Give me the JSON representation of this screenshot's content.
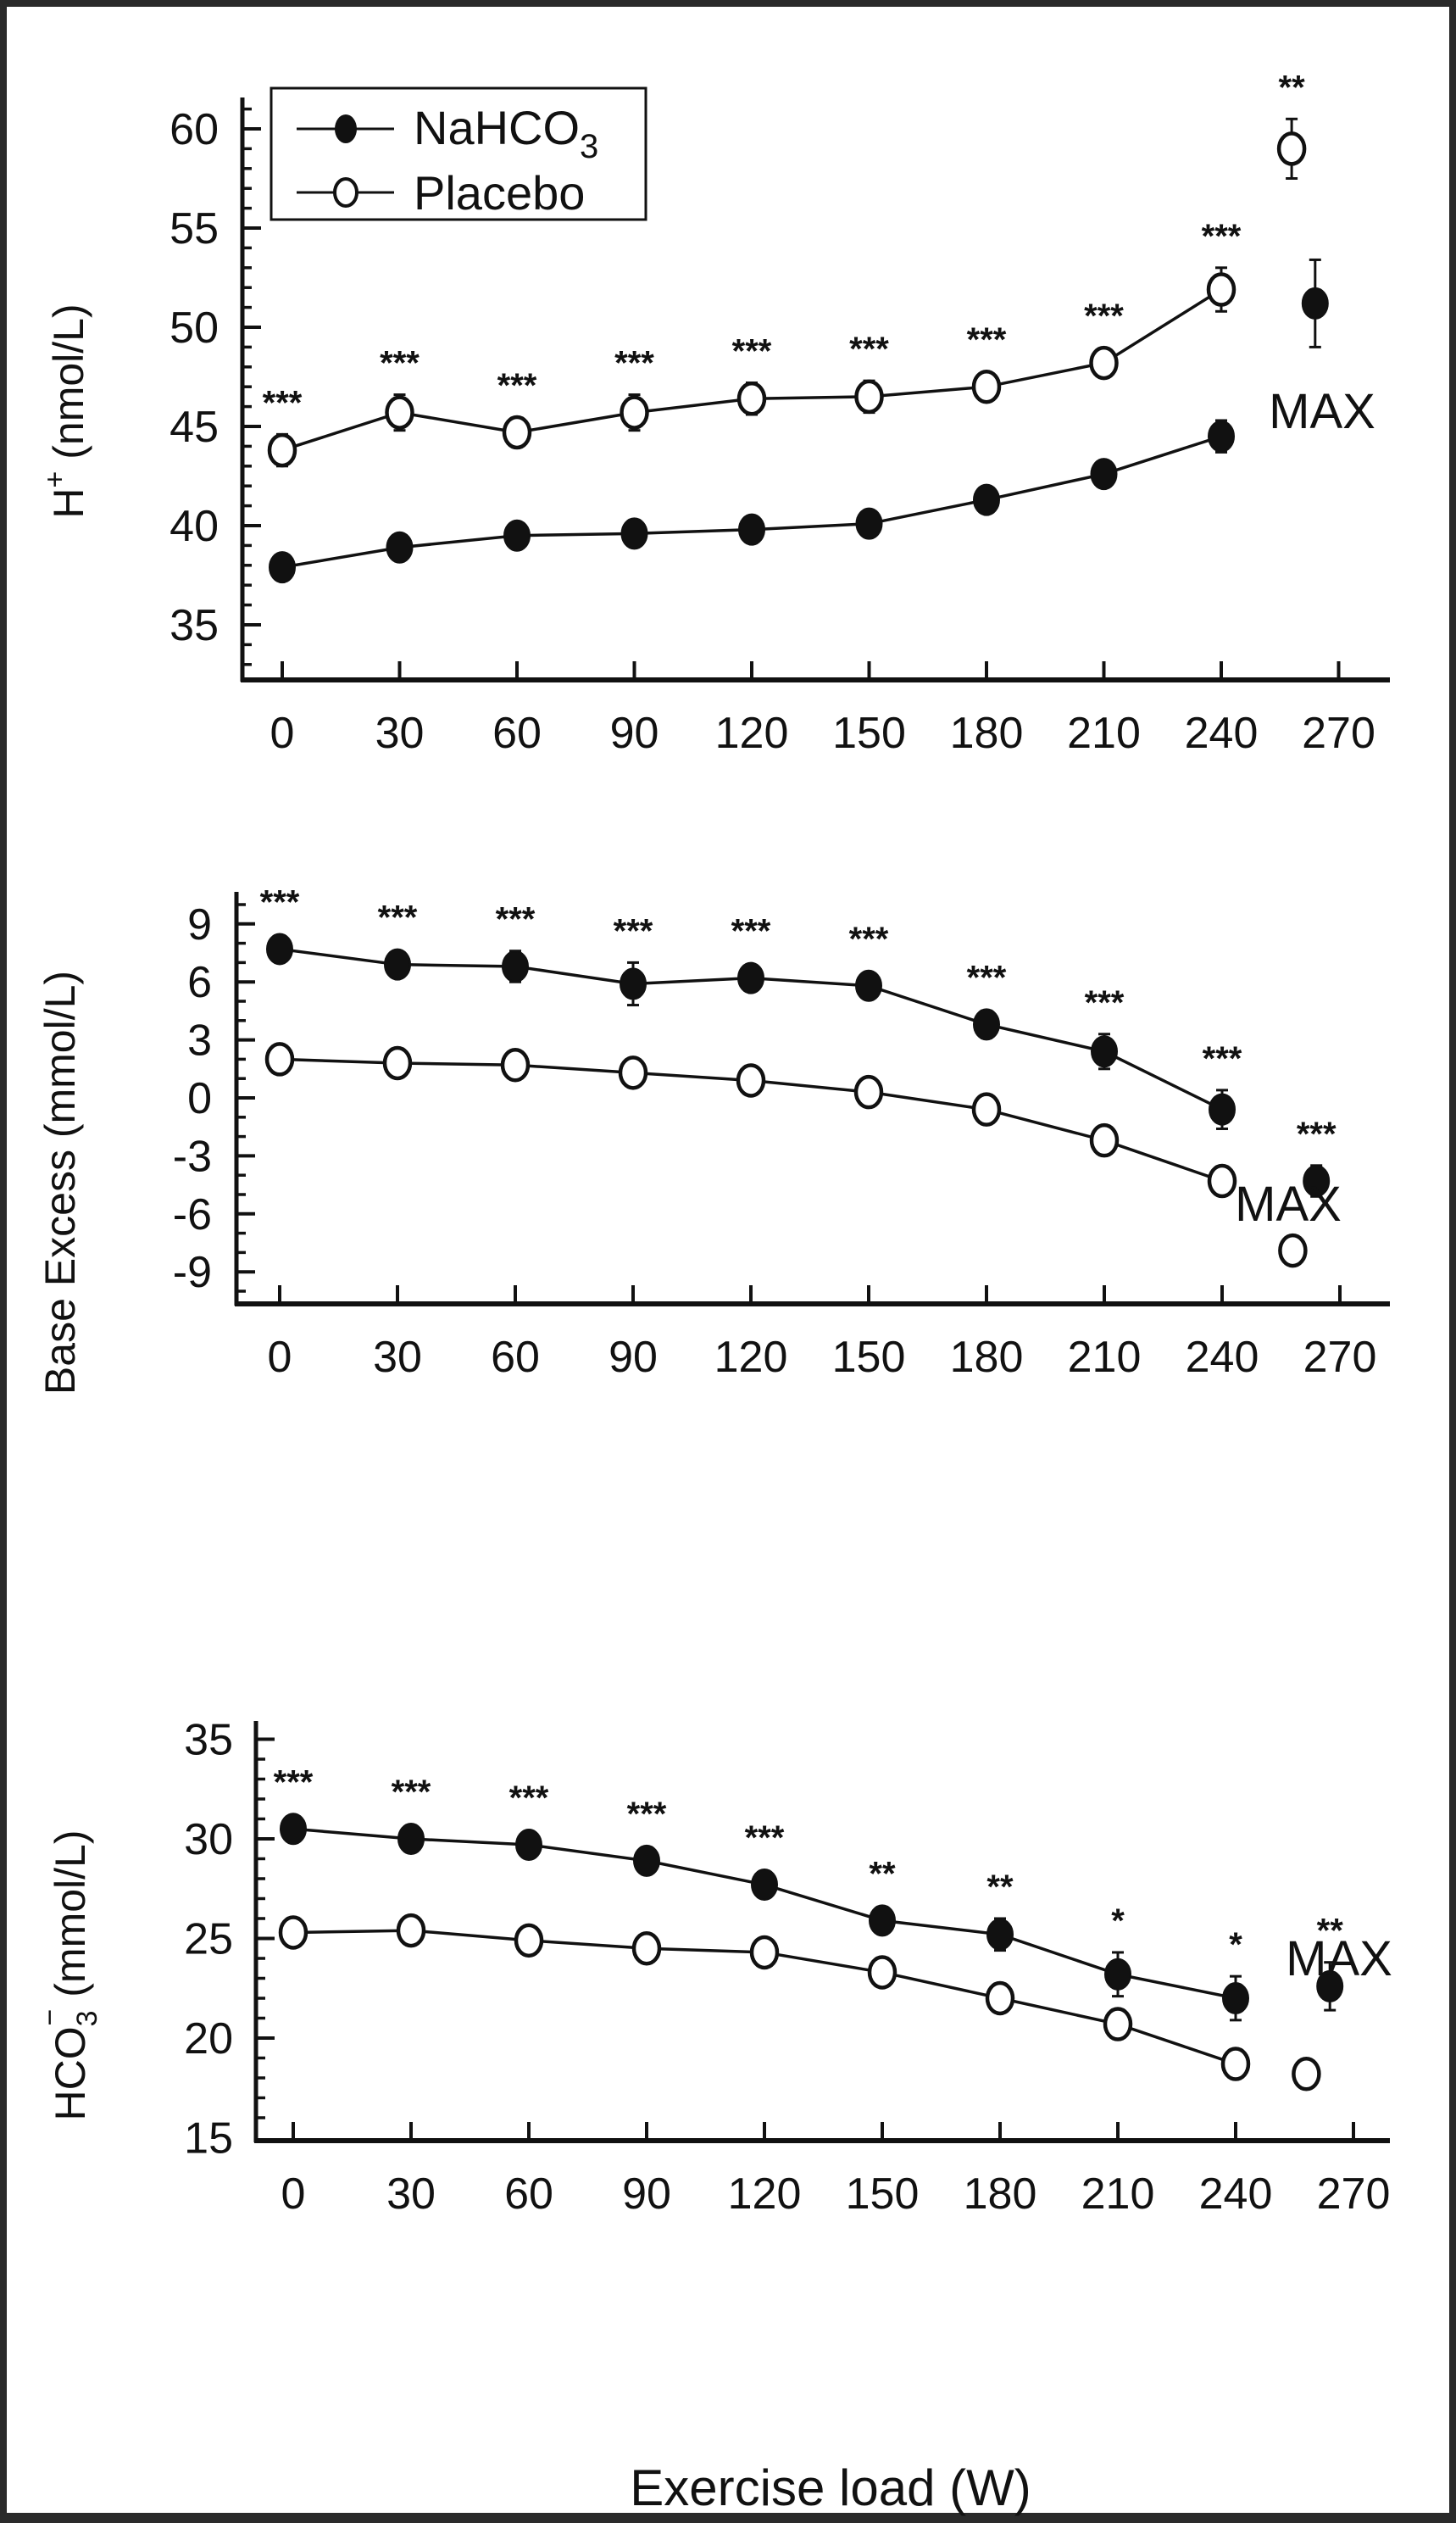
{
  "chart_data": [
    {
      "type": "line",
      "ylabel": "H+ (nmol/L)",
      "ylabel_parts": {
        "main": "H",
        "sup": "+",
        "unit": " (nmol/L)"
      },
      "xlabel": "",
      "x": [
        0,
        30,
        60,
        90,
        120,
        150,
        180,
        210,
        240
      ],
      "x_ticks": [
        "0",
        "30",
        "60",
        "90",
        "120",
        "150",
        "180",
        "210",
        "240",
        "270"
      ],
      "xlim": [
        0,
        270
      ],
      "ylim": [
        32,
        62
      ],
      "y_ticks": [
        35,
        40,
        45,
        50,
        55,
        60
      ],
      "y_tick_labels": [
        "35",
        "40",
        "45",
        "50",
        "55",
        "60"
      ],
      "y_minor_step": 1,
      "series": [
        {
          "name": "NaHCO3",
          "marker": "filled-circle",
          "values": [
            37.9,
            38.9,
            39.5,
            39.6,
            39.8,
            40.1,
            41.3,
            42.6,
            44.5
          ],
          "errors": [
            0.3,
            0.3,
            0.3,
            0.3,
            0.3,
            0.3,
            0.3,
            0.3,
            0.8
          ],
          "max": {
            "x": 264,
            "value": 51.2,
            "error": 2.2
          }
        },
        {
          "name": "Placebo",
          "marker": "open-circle",
          "values": [
            43.8,
            45.7,
            44.7,
            45.7,
            46.4,
            46.5,
            47.0,
            48.2,
            51.9
          ],
          "errors": [
            0.8,
            0.9,
            0.7,
            0.9,
            0.8,
            0.8,
            0.6,
            0.7,
            1.1
          ],
          "max": {
            "x": 258,
            "value": 59.0,
            "error": 1.5
          }
        }
      ],
      "significance": {
        "attached_to": "Placebo",
        "labels": [
          "***",
          "***",
          "***",
          "***",
          "***",
          "***",
          "***",
          "***",
          "***"
        ],
        "max_label": "**"
      },
      "annotation": "MAX",
      "legend": {
        "position": "top-left",
        "entries": [
          {
            "label_main": "NaHCO",
            "label_sub": "3"
          },
          {
            "label_main": "Placebo",
            "label_sub": ""
          }
        ]
      }
    },
    {
      "type": "line",
      "ylabel": "Base Excess (mmol/L)",
      "xlabel": "",
      "x": [
        0,
        30,
        60,
        90,
        120,
        150,
        180,
        210,
        240
      ],
      "x_ticks": [
        "0",
        "30",
        "60",
        "90",
        "120",
        "150",
        "180",
        "210",
        "240",
        "270"
      ],
      "xlim": [
        0,
        270
      ],
      "ylim": [
        -10.5,
        11
      ],
      "y_ticks": [
        -9,
        -6,
        -3,
        0,
        3,
        6,
        9
      ],
      "y_tick_labels": [
        "-9",
        "-6",
        "-3",
        "0",
        "3",
        "6",
        "9"
      ],
      "y_minor_step": 1,
      "series": [
        {
          "name": "NaHCO3",
          "marker": "filled-circle",
          "values": [
            7.7,
            6.9,
            6.8,
            5.9,
            6.2,
            5.8,
            3.8,
            2.4,
            -0.6
          ],
          "errors": [
            0.4,
            0.5,
            0.8,
            1.1,
            0.5,
            0.6,
            0.7,
            0.9,
            1.0
          ],
          "max": {
            "x": 264,
            "value": -4.3,
            "error": 0.8
          }
        },
        {
          "name": "Placebo",
          "marker": "open-circle",
          "values": [
            2.0,
            1.8,
            1.7,
            1.3,
            0.9,
            0.3,
            -0.6,
            -2.2,
            -4.3
          ],
          "errors": [
            0.1,
            0.1,
            0.1,
            0.1,
            0.1,
            0.1,
            0.1,
            0.5,
            0.7
          ],
          "max": {
            "x": 258,
            "value": -7.9,
            "error": 0.6
          }
        }
      ],
      "significance": {
        "attached_to": "NaHCO3",
        "labels": [
          "***",
          "***",
          "***",
          "***",
          "***",
          "***",
          "***",
          "***",
          "***"
        ],
        "max_label": "***"
      },
      "annotation": "MAX"
    },
    {
      "type": "line",
      "ylabel": "HCO3- (mmol/L)",
      "ylabel_parts": {
        "main": "HCO",
        "sub": "3",
        "sup": "−",
        "unit": " (mmol/L)"
      },
      "xlabel": "Exercise load (W)",
      "x": [
        0,
        30,
        60,
        90,
        120,
        150,
        180,
        210,
        240
      ],
      "x_ticks": [
        "0",
        "30",
        "60",
        "90",
        "120",
        "150",
        "180",
        "210",
        "240",
        "270"
      ],
      "xlim": [
        0,
        270
      ],
      "ylim": [
        15,
        36
      ],
      "y_ticks": [
        15,
        20,
        25,
        30,
        35
      ],
      "y_tick_labels": [
        "15",
        "20",
        "25",
        "30",
        "35"
      ],
      "y_minor_step": 1,
      "series": [
        {
          "name": "NaHCO3",
          "marker": "filled-circle",
          "values": [
            30.5,
            30.0,
            29.7,
            28.9,
            27.7,
            25.9,
            25.2,
            23.2,
            22.0
          ],
          "errors": [
            0.2,
            0.2,
            0.2,
            0.2,
            0.2,
            0.6,
            0.8,
            1.1,
            1.1
          ],
          "max": {
            "x": 264,
            "value": 22.6,
            "error": 1.2
          }
        },
        {
          "name": "Placebo",
          "marker": "open-circle",
          "values": [
            25.3,
            25.4,
            24.9,
            24.5,
            24.3,
            23.3,
            22.0,
            20.7,
            18.7
          ],
          "errors": [
            0.1,
            0.1,
            0.1,
            0.1,
            0.1,
            0.1,
            0.3,
            0.5,
            0.5
          ],
          "max": {
            "x": 258,
            "value": 18.2,
            "error": 0.0
          }
        }
      ],
      "significance": {
        "attached_to": "NaHCO3",
        "labels": [
          "***",
          "***",
          "***",
          "***",
          "***",
          "**",
          "**",
          "*",
          "*"
        ],
        "max_label": "**"
      },
      "annotation": "MAX"
    }
  ],
  "colors": {
    "ink": "#111111",
    "background": "#ffffff",
    "frame": "#2a2a2a"
  }
}
